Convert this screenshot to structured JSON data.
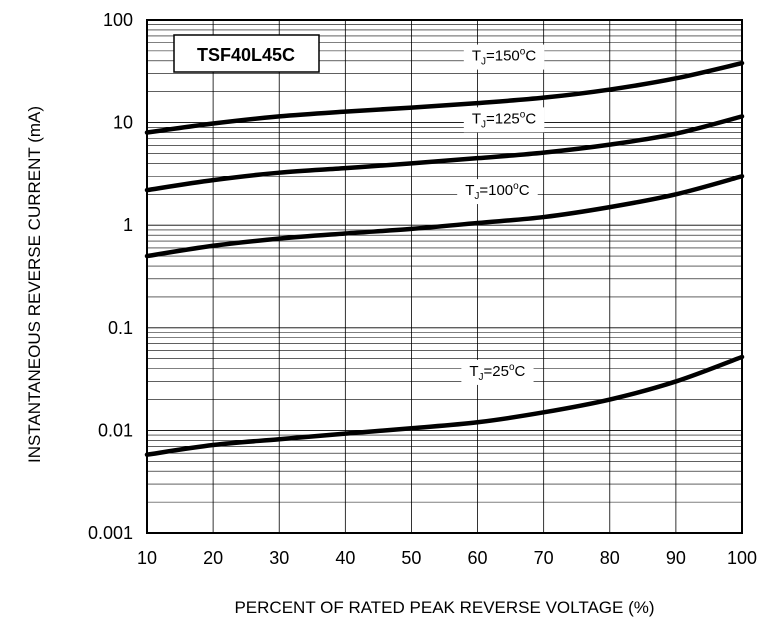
{
  "chart_data": {
    "type": "line",
    "title": "",
    "part_number": "TSF40L45C",
    "xlabel": "PERCENT OF RATED PEAK REVERSE VOLTAGE (%)",
    "ylabel": "INSTANTANEOUS  REVERSE CURRENT (mA)",
    "xlim": [
      10,
      100
    ],
    "ylim": [
      0.001,
      100
    ],
    "yscale": "log",
    "grid": true,
    "x_ticks": [
      10,
      20,
      30,
      40,
      50,
      60,
      70,
      80,
      90,
      100
    ],
    "x_tick_labels": [
      "10",
      "20",
      "30",
      "40",
      "50",
      "60",
      "70",
      "80",
      "90",
      "100"
    ],
    "y_ticks": [
      0.001,
      0.01,
      0.1,
      1,
      10,
      100
    ],
    "y_tick_labels": [
      "0.001",
      "0.01",
      "0.1",
      "1",
      "10",
      "100"
    ],
    "x": [
      10,
      20,
      30,
      40,
      50,
      60,
      70,
      80,
      90,
      100
    ],
    "series": [
      {
        "label_main": "T",
        "label_sub": "J",
        "label_rest": "=150",
        "label_sup": "o",
        "label_unit": "C",
        "label_at": [
          64,
          45
        ],
        "values": [
          8.0,
          9.8,
          11.5,
          12.8,
          14.0,
          15.5,
          17.5,
          21.0,
          27.0,
          38.0
        ]
      },
      {
        "label_main": "T",
        "label_sub": "J",
        "label_rest": "=125",
        "label_sup": "o",
        "label_unit": "C",
        "label_at": [
          64,
          11
        ],
        "values": [
          2.2,
          2.75,
          3.25,
          3.6,
          4.0,
          4.5,
          5.1,
          6.1,
          7.8,
          11.5
        ]
      },
      {
        "label_main": "T",
        "label_sub": "J",
        "label_rest": "=100",
        "label_sup": "o",
        "label_unit": "C",
        "label_at": [
          63,
          2.2
        ],
        "values": [
          0.5,
          0.63,
          0.74,
          0.83,
          0.92,
          1.05,
          1.2,
          1.5,
          2.0,
          3.0
        ]
      },
      {
        "label_main": "T",
        "label_sub": "J",
        "label_rest": "=25",
        "label_sup": "o",
        "label_unit": "C",
        "label_at": [
          63,
          0.038
        ],
        "values": [
          0.0058,
          0.0072,
          0.0082,
          0.0093,
          0.0105,
          0.012,
          0.015,
          0.02,
          0.03,
          0.052
        ]
      }
    ]
  }
}
